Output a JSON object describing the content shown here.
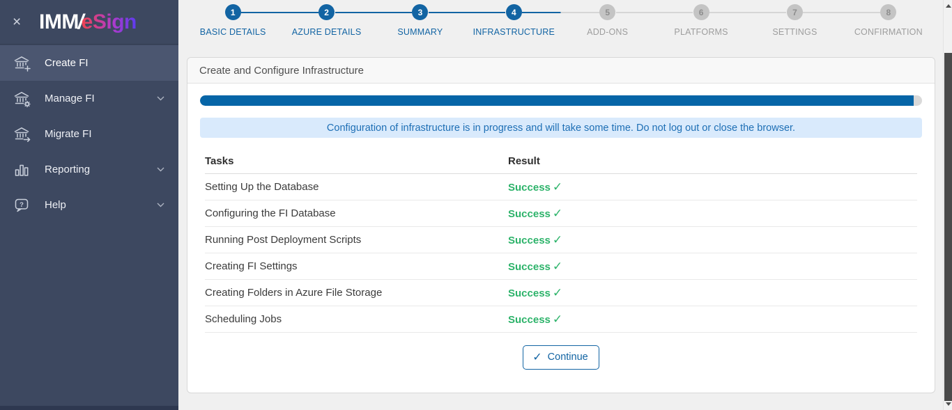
{
  "brand": {
    "imm": "IMM",
    "slash": "/",
    "esign": "eSign"
  },
  "icons": {
    "close": "×",
    "check": "✓"
  },
  "sidebar": {
    "items": [
      {
        "label": "Create FI",
        "icon": "bank-plus-icon",
        "active": true,
        "has_chevron": false
      },
      {
        "label": "Manage FI",
        "icon": "bank-gear-icon",
        "active": false,
        "has_chevron": true
      },
      {
        "label": "Migrate FI",
        "icon": "bank-arrow-icon",
        "active": false,
        "has_chevron": false
      },
      {
        "label": "Reporting",
        "icon": "bar-chart-icon",
        "active": false,
        "has_chevron": true
      },
      {
        "label": "Help",
        "icon": "help-bubble-icon",
        "active": false,
        "has_chevron": true
      }
    ]
  },
  "stepper": {
    "steps": [
      {
        "number": "1",
        "label": "BASIC DETAILS",
        "state": "done"
      },
      {
        "number": "2",
        "label": "AZURE DETAILS",
        "state": "done"
      },
      {
        "number": "3",
        "label": "SUMMARY",
        "state": "done"
      },
      {
        "number": "4",
        "label": "INFRASTRUCTURE",
        "state": "active"
      },
      {
        "number": "5",
        "label": "ADD-ONS",
        "state": "upcoming"
      },
      {
        "number": "6",
        "label": "PLATFORMS",
        "state": "upcoming"
      },
      {
        "number": "7",
        "label": "SETTINGS",
        "state": "upcoming"
      },
      {
        "number": "8",
        "label": "CONFIRMATION",
        "state": "upcoming"
      }
    ]
  },
  "panel": {
    "title": "Create and Configure Infrastructure"
  },
  "progress": {
    "percent": 98.8
  },
  "alert": {
    "message": "Configuration of infrastructure is in progress and will take some time. Do not log out or close the browser."
  },
  "tasks": {
    "headers": {
      "task": "Tasks",
      "result": "Result"
    },
    "rows": [
      {
        "task": "Setting Up the Database",
        "result": "Success"
      },
      {
        "task": "Configuring the FI Database",
        "result": "Success"
      },
      {
        "task": "Running Post Deployment Scripts",
        "result": "Success"
      },
      {
        "task": "Creating FI Settings",
        "result": "Success"
      },
      {
        "task": "Creating Folders in Azure File Storage",
        "result": "Success"
      },
      {
        "task": "Scheduling Jobs",
        "result": "Success"
      }
    ]
  },
  "actions": {
    "continue_label": "Continue"
  },
  "colors": {
    "sidebar_bg": "#3d4860",
    "sidebar_active_bg": "#4b5670",
    "accent_blue": "#1264a3",
    "progress_blue": "#0665a7",
    "success_green": "#2db36a",
    "alert_bg": "#d9eafc",
    "alert_text": "#1e6fb5",
    "inactive_gray": "#c4c4c4",
    "page_bg": "#f0f0f0"
  }
}
